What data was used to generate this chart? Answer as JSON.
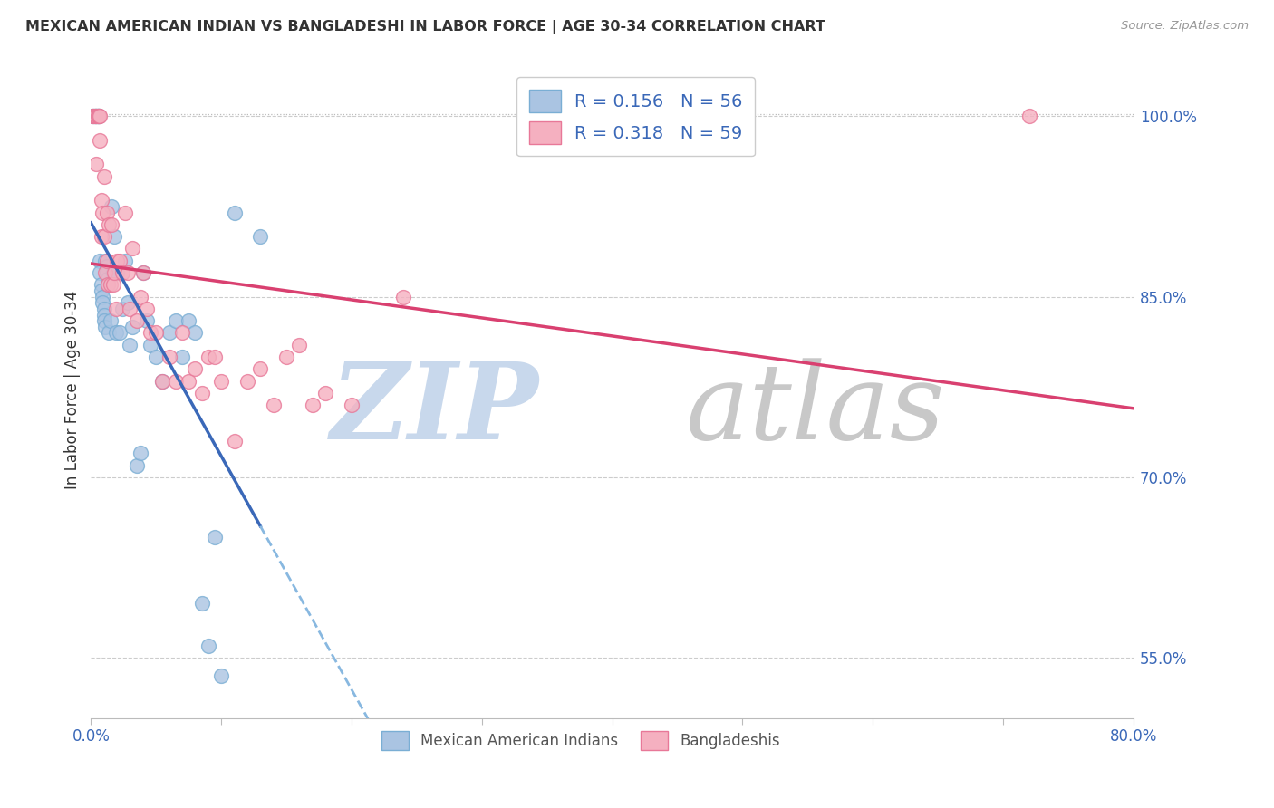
{
  "title": "MEXICAN AMERICAN INDIAN VS BANGLADESHI IN LABOR FORCE | AGE 30-34 CORRELATION CHART",
  "source": "Source: ZipAtlas.com",
  "ylabel": "In Labor Force | Age 30-34",
  "xlim": [
    0.0,
    0.8
  ],
  "ylim": [
    0.5,
    1.045
  ],
  "yticks": [
    0.55,
    0.7,
    0.85,
    1.0
  ],
  "ytick_labels": [
    "55.0%",
    "70.0%",
    "85.0%",
    "100.0%"
  ],
  "xticks": [
    0.0,
    0.1,
    0.2,
    0.3,
    0.4,
    0.5,
    0.6,
    0.7,
    0.8
  ],
  "xtick_labels": [
    "0.0%",
    "",
    "",
    "",
    "",
    "",
    "",
    "",
    "80.0%"
  ],
  "r_blue": 0.156,
  "n_blue": 56,
  "r_pink": 0.318,
  "n_pink": 59,
  "blue_color": "#aac4e2",
  "pink_color": "#f5b0c0",
  "blue_edge": "#7aaed4",
  "pink_edge": "#e87898",
  "blue_line_color": "#3a68b8",
  "pink_line_color": "#d94070",
  "dashed_line_color": "#88b8e0",
  "axis_color": "#3a68b8",
  "grid_color": "#cccccc",
  "top_dot_color": "#bbbbbb",
  "blue_scatter_x": [
    0.001,
    0.002,
    0.003,
    0.003,
    0.004,
    0.004,
    0.005,
    0.005,
    0.006,
    0.006,
    0.007,
    0.007,
    0.008,
    0.008,
    0.009,
    0.009,
    0.01,
    0.01,
    0.01,
    0.011,
    0.011,
    0.012,
    0.012,
    0.013,
    0.013,
    0.014,
    0.015,
    0.016,
    0.017,
    0.018,
    0.019,
    0.02,
    0.022,
    0.024,
    0.026,
    0.028,
    0.03,
    0.032,
    0.035,
    0.038,
    0.04,
    0.043,
    0.046,
    0.05,
    0.055,
    0.06,
    0.065,
    0.07,
    0.075,
    0.08,
    0.085,
    0.09,
    0.095,
    0.1,
    0.11,
    0.13
  ],
  "blue_scatter_y": [
    1.0,
    1.0,
    1.0,
    1.0,
    1.0,
    1.0,
    1.0,
    1.0,
    1.0,
    1.0,
    0.88,
    0.87,
    0.86,
    0.855,
    0.85,
    0.845,
    0.84,
    0.835,
    0.83,
    0.825,
    0.88,
    0.875,
    0.87,
    0.865,
    0.86,
    0.82,
    0.83,
    0.925,
    0.87,
    0.9,
    0.82,
    0.87,
    0.82,
    0.84,
    0.88,
    0.845,
    0.81,
    0.825,
    0.71,
    0.72,
    0.87,
    0.83,
    0.81,
    0.8,
    0.78,
    0.82,
    0.83,
    0.8,
    0.83,
    0.82,
    0.595,
    0.56,
    0.65,
    0.535,
    0.92,
    0.9
  ],
  "pink_scatter_x": [
    0.001,
    0.002,
    0.003,
    0.004,
    0.004,
    0.005,
    0.006,
    0.006,
    0.007,
    0.007,
    0.008,
    0.008,
    0.009,
    0.01,
    0.01,
    0.011,
    0.012,
    0.012,
    0.013,
    0.014,
    0.015,
    0.016,
    0.017,
    0.018,
    0.019,
    0.02,
    0.022,
    0.024,
    0.026,
    0.028,
    0.03,
    0.032,
    0.035,
    0.038,
    0.04,
    0.043,
    0.046,
    0.05,
    0.055,
    0.06,
    0.065,
    0.07,
    0.075,
    0.08,
    0.085,
    0.09,
    0.095,
    0.1,
    0.11,
    0.12,
    0.13,
    0.14,
    0.15,
    0.16,
    0.17,
    0.18,
    0.2,
    0.24,
    0.72
  ],
  "pink_scatter_y": [
    1.0,
    1.0,
    1.0,
    1.0,
    0.96,
    1.0,
    1.0,
    1.0,
    1.0,
    0.98,
    0.93,
    0.9,
    0.92,
    0.95,
    0.9,
    0.87,
    0.92,
    0.88,
    0.86,
    0.91,
    0.86,
    0.91,
    0.86,
    0.87,
    0.84,
    0.88,
    0.88,
    0.87,
    0.92,
    0.87,
    0.84,
    0.89,
    0.83,
    0.85,
    0.87,
    0.84,
    0.82,
    0.82,
    0.78,
    0.8,
    0.78,
    0.82,
    0.78,
    0.79,
    0.77,
    0.8,
    0.8,
    0.78,
    0.73,
    0.78,
    0.79,
    0.76,
    0.8,
    0.81,
    0.76,
    0.77,
    0.76,
    0.85,
    1.0
  ]
}
